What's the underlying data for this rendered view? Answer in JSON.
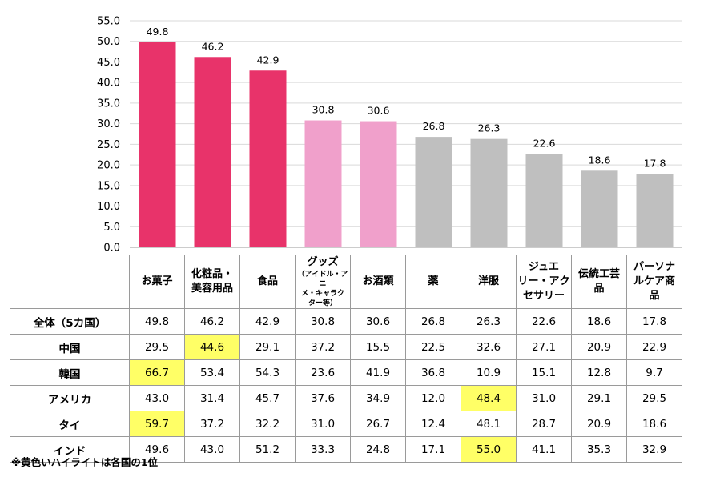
{
  "chart_data": {
    "type": "bar",
    "categories": [
      "お菓子",
      "化粧品・美容用品",
      "食品",
      "グッズ（アイドル・アニメ・キャラクター等）",
      "お酒類",
      "薬",
      "洋服",
      "ジュエリー・アクセサリー",
      "伝統工芸品",
      "パーソナルケア商品"
    ],
    "values": [
      49.8,
      46.2,
      42.9,
      30.8,
      30.6,
      26.8,
      26.3,
      22.6,
      18.6,
      17.8
    ],
    "value_labels": [
      "49.8",
      "46.2",
      "42.9",
      "30.8",
      "30.6",
      "26.8",
      "26.3",
      "22.6",
      "18.6",
      "17.8"
    ],
    "bar_colors": [
      "#e8336a",
      "#e8336a",
      "#e8336a",
      "#f0a0cb",
      "#f0a0cb",
      "#bfbfbf",
      "#bfbfbf",
      "#bfbfbf",
      "#bfbfbf",
      "#bfbfbf"
    ],
    "ylim": [
      0,
      55
    ],
    "yticks": [
      "0.0",
      "5.0",
      "10.0",
      "15.0",
      "20.0",
      "25.0",
      "30.0",
      "35.0",
      "40.0",
      "45.0",
      "50.0",
      "55.0"
    ],
    "grid": true,
    "title": "",
    "xlabel": "",
    "ylabel": ""
  },
  "table": {
    "headers": [
      {
        "lines": [
          "お菓子"
        ]
      },
      {
        "lines": [
          "化粧品・",
          "美容用品"
        ]
      },
      {
        "lines": [
          "食品"
        ]
      },
      {
        "lines": [
          "グッズ"
        ],
        "sub": [
          "（アイドル・アニ",
          "メ・キャラク",
          "ター等）"
        ]
      },
      {
        "lines": [
          "お酒類"
        ]
      },
      {
        "lines": [
          "薬"
        ]
      },
      {
        "lines": [
          "洋服"
        ]
      },
      {
        "lines": [
          "ジュエ",
          "リー・アク",
          "セサリー"
        ]
      },
      {
        "lines": [
          "伝統工芸",
          "品"
        ]
      },
      {
        "lines": [
          "パーソナ",
          "ルケア商",
          "品"
        ]
      }
    ],
    "rows": [
      {
        "label": "全体（5カ国）",
        "values": [
          "49.8",
          "46.2",
          "42.9",
          "30.8",
          "30.6",
          "26.8",
          "26.3",
          "22.6",
          "18.6",
          "17.8"
        ],
        "highlight": -1
      },
      {
        "label": "中国",
        "values": [
          "29.5",
          "44.6",
          "29.1",
          "37.2",
          "15.5",
          "22.5",
          "32.6",
          "27.1",
          "20.9",
          "22.9"
        ],
        "highlight": 1
      },
      {
        "label": "韓国",
        "values": [
          "66.7",
          "53.4",
          "54.3",
          "23.6",
          "41.9",
          "36.8",
          "10.9",
          "15.1",
          "12.8",
          "9.7"
        ],
        "highlight": 0
      },
      {
        "label": "アメリカ",
        "values": [
          "43.0",
          "31.4",
          "45.7",
          "37.6",
          "34.9",
          "12.0",
          "48.4",
          "31.0",
          "29.1",
          "29.5"
        ],
        "highlight": 6
      },
      {
        "label": "タイ",
        "values": [
          "59.7",
          "37.2",
          "32.2",
          "31.0",
          "26.7",
          "12.4",
          "48.1",
          "28.7",
          "20.9",
          "18.6"
        ],
        "highlight": 0
      },
      {
        "label": "インド",
        "values": [
          "49.6",
          "43.0",
          "51.2",
          "33.3",
          "24.8",
          "17.1",
          "55.0",
          "41.1",
          "35.3",
          "32.9"
        ],
        "highlight": 6
      }
    ],
    "highlight_color": "#ffff66"
  },
  "footnote": "※黄色いハイライトは各国の1位"
}
